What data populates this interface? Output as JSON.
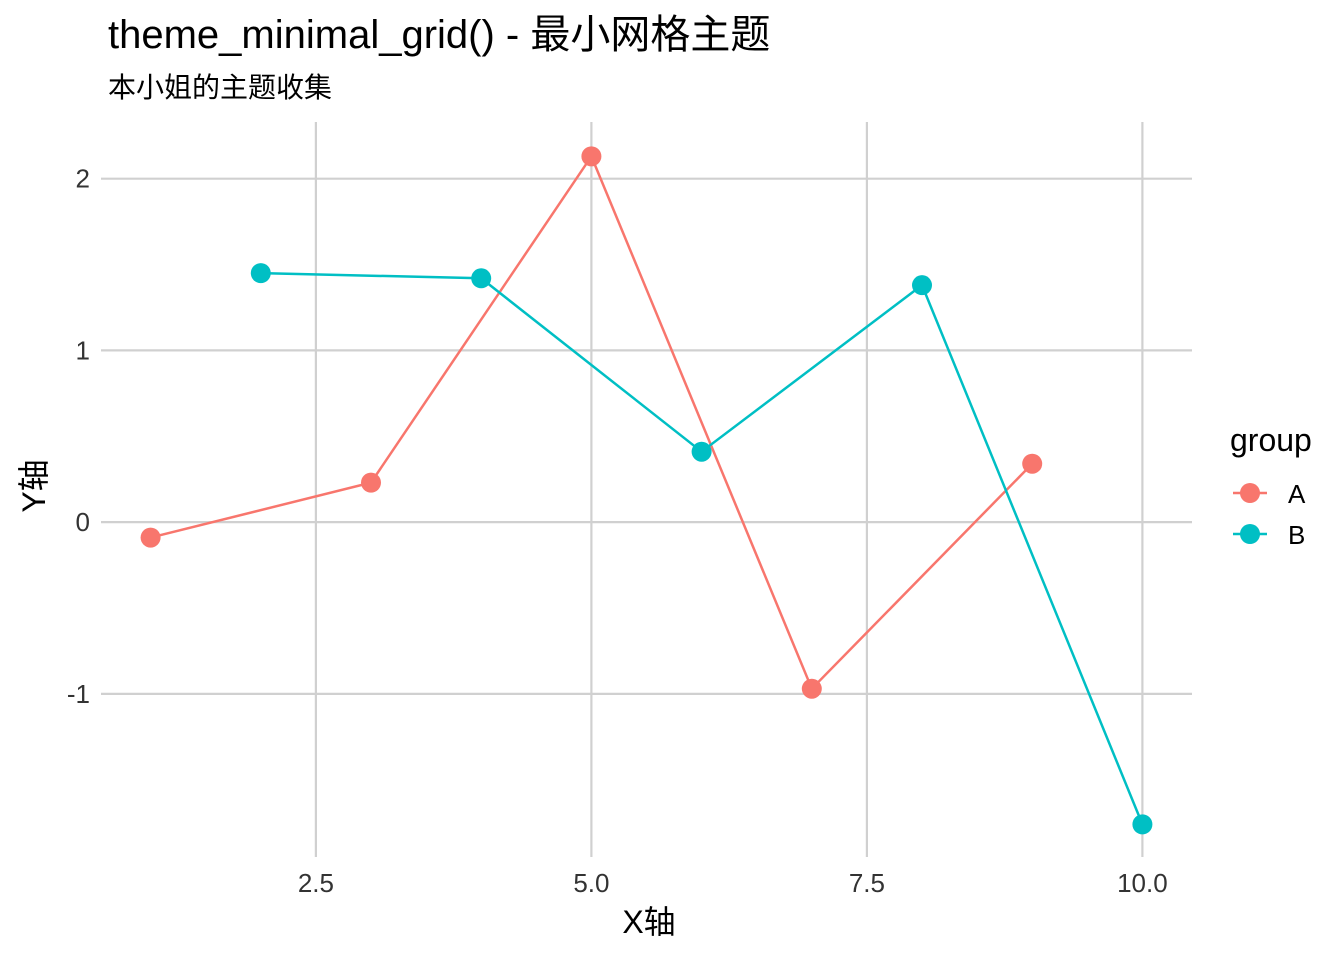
{
  "chart_data": {
    "type": "line",
    "title": "theme_minimal_grid() - 最小网格主题",
    "subtitle": "本小姐的主题收集",
    "xlabel": "X轴",
    "ylabel": "Y轴",
    "xlim": [
      0.55,
      10.45
    ],
    "ylim": [
      -1.95,
      2.33
    ],
    "xticks": [
      2.5,
      5.0,
      7.5,
      10.0
    ],
    "xtick_labels": [
      "2.5",
      "5.0",
      "7.5",
      "10.0"
    ],
    "yticks": [
      -1,
      0,
      1,
      2
    ],
    "ytick_labels": [
      "-1",
      "0",
      "1",
      "2"
    ],
    "grid": true,
    "legend": {
      "title": "group",
      "position": "right"
    },
    "series": [
      {
        "name": "A",
        "color": "#F8766D",
        "x": [
          1,
          3,
          5,
          7,
          9
        ],
        "y": [
          -0.09,
          0.23,
          2.13,
          -0.97,
          0.34
        ]
      },
      {
        "name": "B",
        "color": "#00BFC4",
        "x": [
          2,
          4,
          6,
          8,
          10
        ],
        "y": [
          1.45,
          1.42,
          0.41,
          1.38,
          -1.76
        ]
      }
    ]
  }
}
